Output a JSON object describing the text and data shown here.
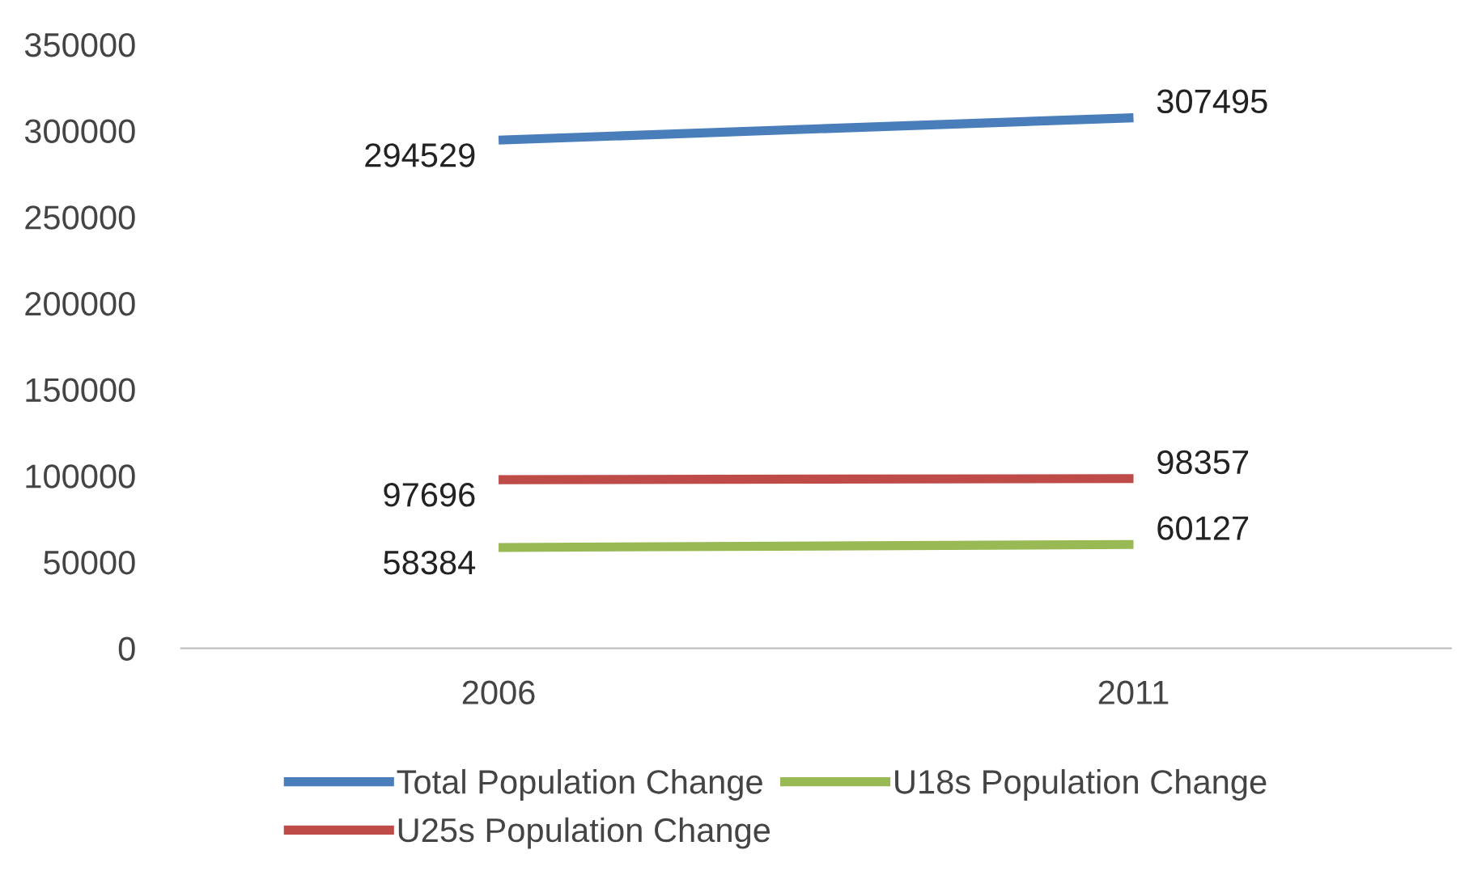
{
  "chart_data": {
    "type": "line",
    "categories": [
      "2006",
      "2011"
    ],
    "series": [
      {
        "name": "Total Population Change",
        "color": "#4a7ebb",
        "values": [
          294529,
          307495
        ]
      },
      {
        "name": "U25s Population Change",
        "color": "#be4b48",
        "values": [
          97696,
          98357
        ]
      },
      {
        "name": "U18s Population Change",
        "color": "#98b954",
        "values": [
          58384,
          60127
        ]
      }
    ],
    "ylim": [
      0,
      350000
    ],
    "yticks": [
      0,
      50000,
      100000,
      150000,
      200000,
      250000,
      300000,
      350000
    ],
    "data_labels": true,
    "grid": false,
    "legend": "bottom",
    "marker": "none",
    "line_style": "solid"
  }
}
